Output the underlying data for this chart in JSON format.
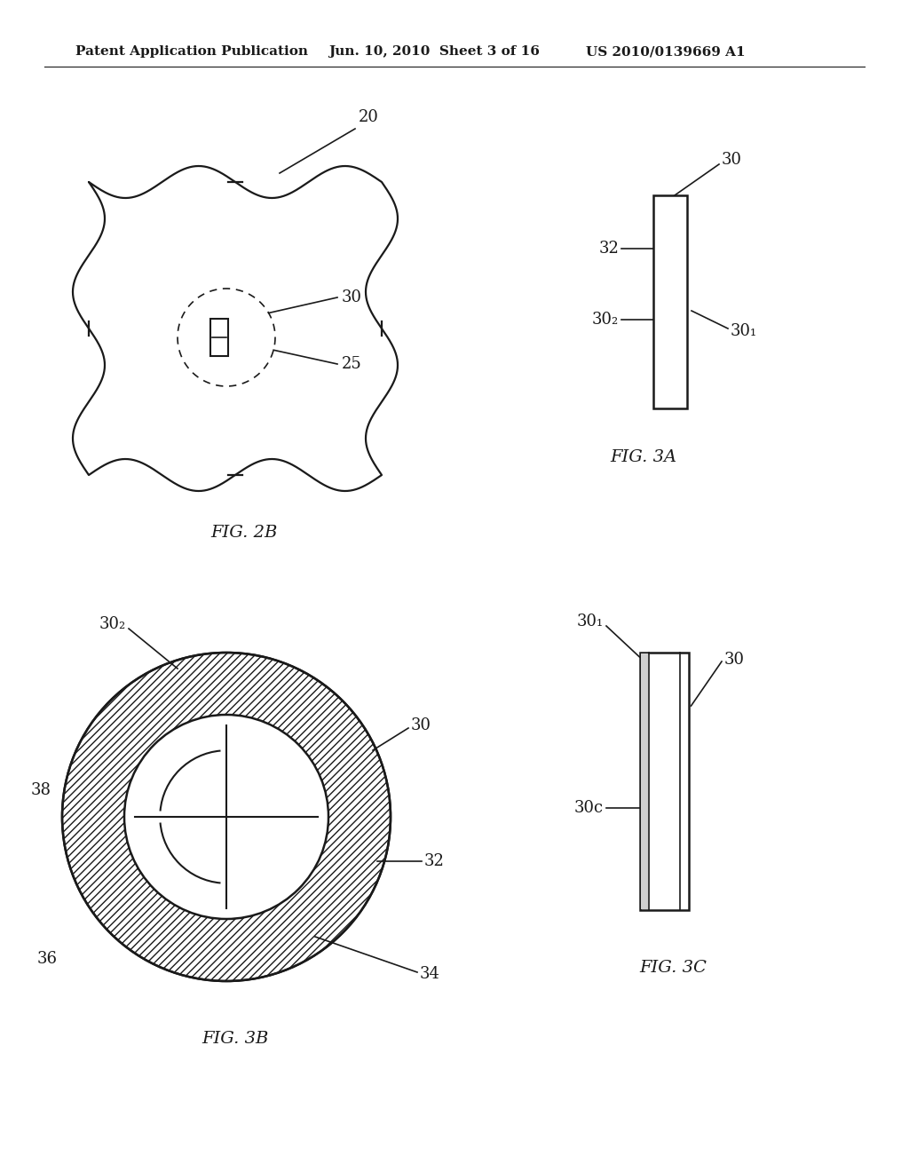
{
  "header_left": "Patent Application Publication",
  "header_mid": "Jun. 10, 2010  Sheet 3 of 16",
  "header_right": "US 2010/0139669 A1",
  "bg_color": "#ffffff",
  "line_color": "#1a1a1a",
  "fig2b_label": "FIG. 2B",
  "fig3a_label": "FIG. 3A",
  "fig3b_label": "FIG. 3B",
  "fig3c_label": "FIG. 3C",
  "ref_20": "20",
  "ref_25": "25",
  "ref_30": "30",
  "ref_30_1": "30₁",
  "ref_30_2": "30₂",
  "ref_32": "32",
  "ref_34": "34",
  "ref_36": "36",
  "ref_38": "38",
  "ref_30c": "30c",
  "ref_30t": "30₁"
}
